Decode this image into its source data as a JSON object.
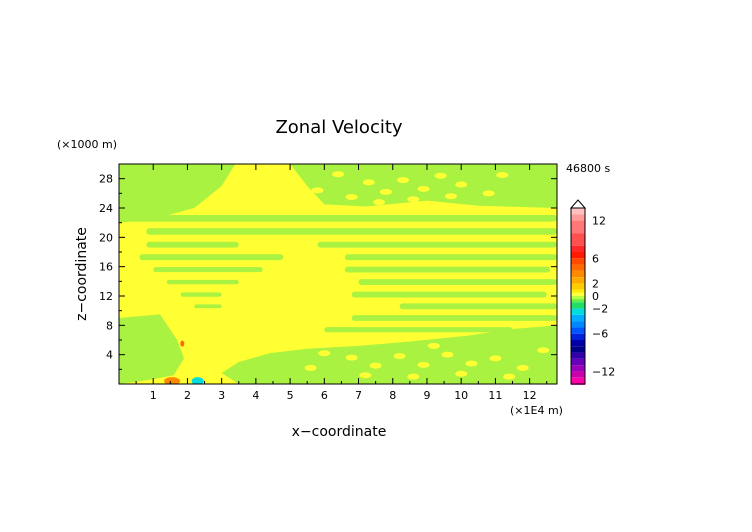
{
  "chart_data": {
    "type": "heatmap",
    "title": "Zonal Velocity",
    "xlabel": "x−coordinate",
    "ylabel": "z−coordinate",
    "x_unit": "(×1E4 m)",
    "y_unit": "(×1000 m)",
    "time_label": "46800 s",
    "x_ticks": [
      "1",
      "2",
      "3",
      "4",
      "5",
      "6",
      "7",
      "8",
      "9",
      "10",
      "11",
      "12"
    ],
    "y_ticks": [
      "4",
      "8",
      "12",
      "16",
      "20",
      "24",
      "28"
    ],
    "xlim": [
      0,
      12.8
    ],
    "ylim": [
      0,
      30
    ],
    "colorbar_ticks": [
      "12",
      "6",
      "2",
      "0",
      "−2",
      "−6",
      "−12"
    ],
    "colorbar_levels": [
      {
        "value": 14,
        "color": "#ffc0c0"
      },
      {
        "value": 13,
        "color": "#ff9b9b"
      },
      {
        "value": 12,
        "color": "#ff7777"
      },
      {
        "value": 10,
        "color": "#ff5050"
      },
      {
        "value": 8,
        "color": "#ff2828"
      },
      {
        "value": 7,
        "color": "#ff1a00"
      },
      {
        "value": 6,
        "color": "#ff4800"
      },
      {
        "value": 5,
        "color": "#ff6a00"
      },
      {
        "value": 4,
        "color": "#ff8a00"
      },
      {
        "value": 3,
        "color": "#ffaa00"
      },
      {
        "value": 2,
        "color": "#ffcc00"
      },
      {
        "value": 1,
        "color": "#ffee00"
      },
      {
        "value": 0.5,
        "color": "#ffff44"
      },
      {
        "value": 0,
        "color": "#b8ff40"
      },
      {
        "value": -0.5,
        "color": "#66ee44"
      },
      {
        "value": -1,
        "color": "#22dd66"
      },
      {
        "value": -2,
        "color": "#00dddd"
      },
      {
        "value": -3,
        "color": "#00b0ff"
      },
      {
        "value": -4,
        "color": "#0088ff"
      },
      {
        "value": -5,
        "color": "#0055ff"
      },
      {
        "value": -6,
        "color": "#0022dd"
      },
      {
        "value": -7,
        "color": "#0000aa"
      },
      {
        "value": -8,
        "color": "#000088"
      },
      {
        "value": -9,
        "color": "#3300aa"
      },
      {
        "value": -10,
        "color": "#6600bb"
      },
      {
        "value": -11,
        "color": "#9900bb"
      },
      {
        "value": -12,
        "color": "#cc00aa"
      },
      {
        "value": -13,
        "color": "#ff00aa"
      },
      {
        "value": -14,
        "color": "#ff44cc"
      }
    ],
    "colors": {
      "positive_field": "#ffff33",
      "negative_field": "#a9f241"
    }
  }
}
